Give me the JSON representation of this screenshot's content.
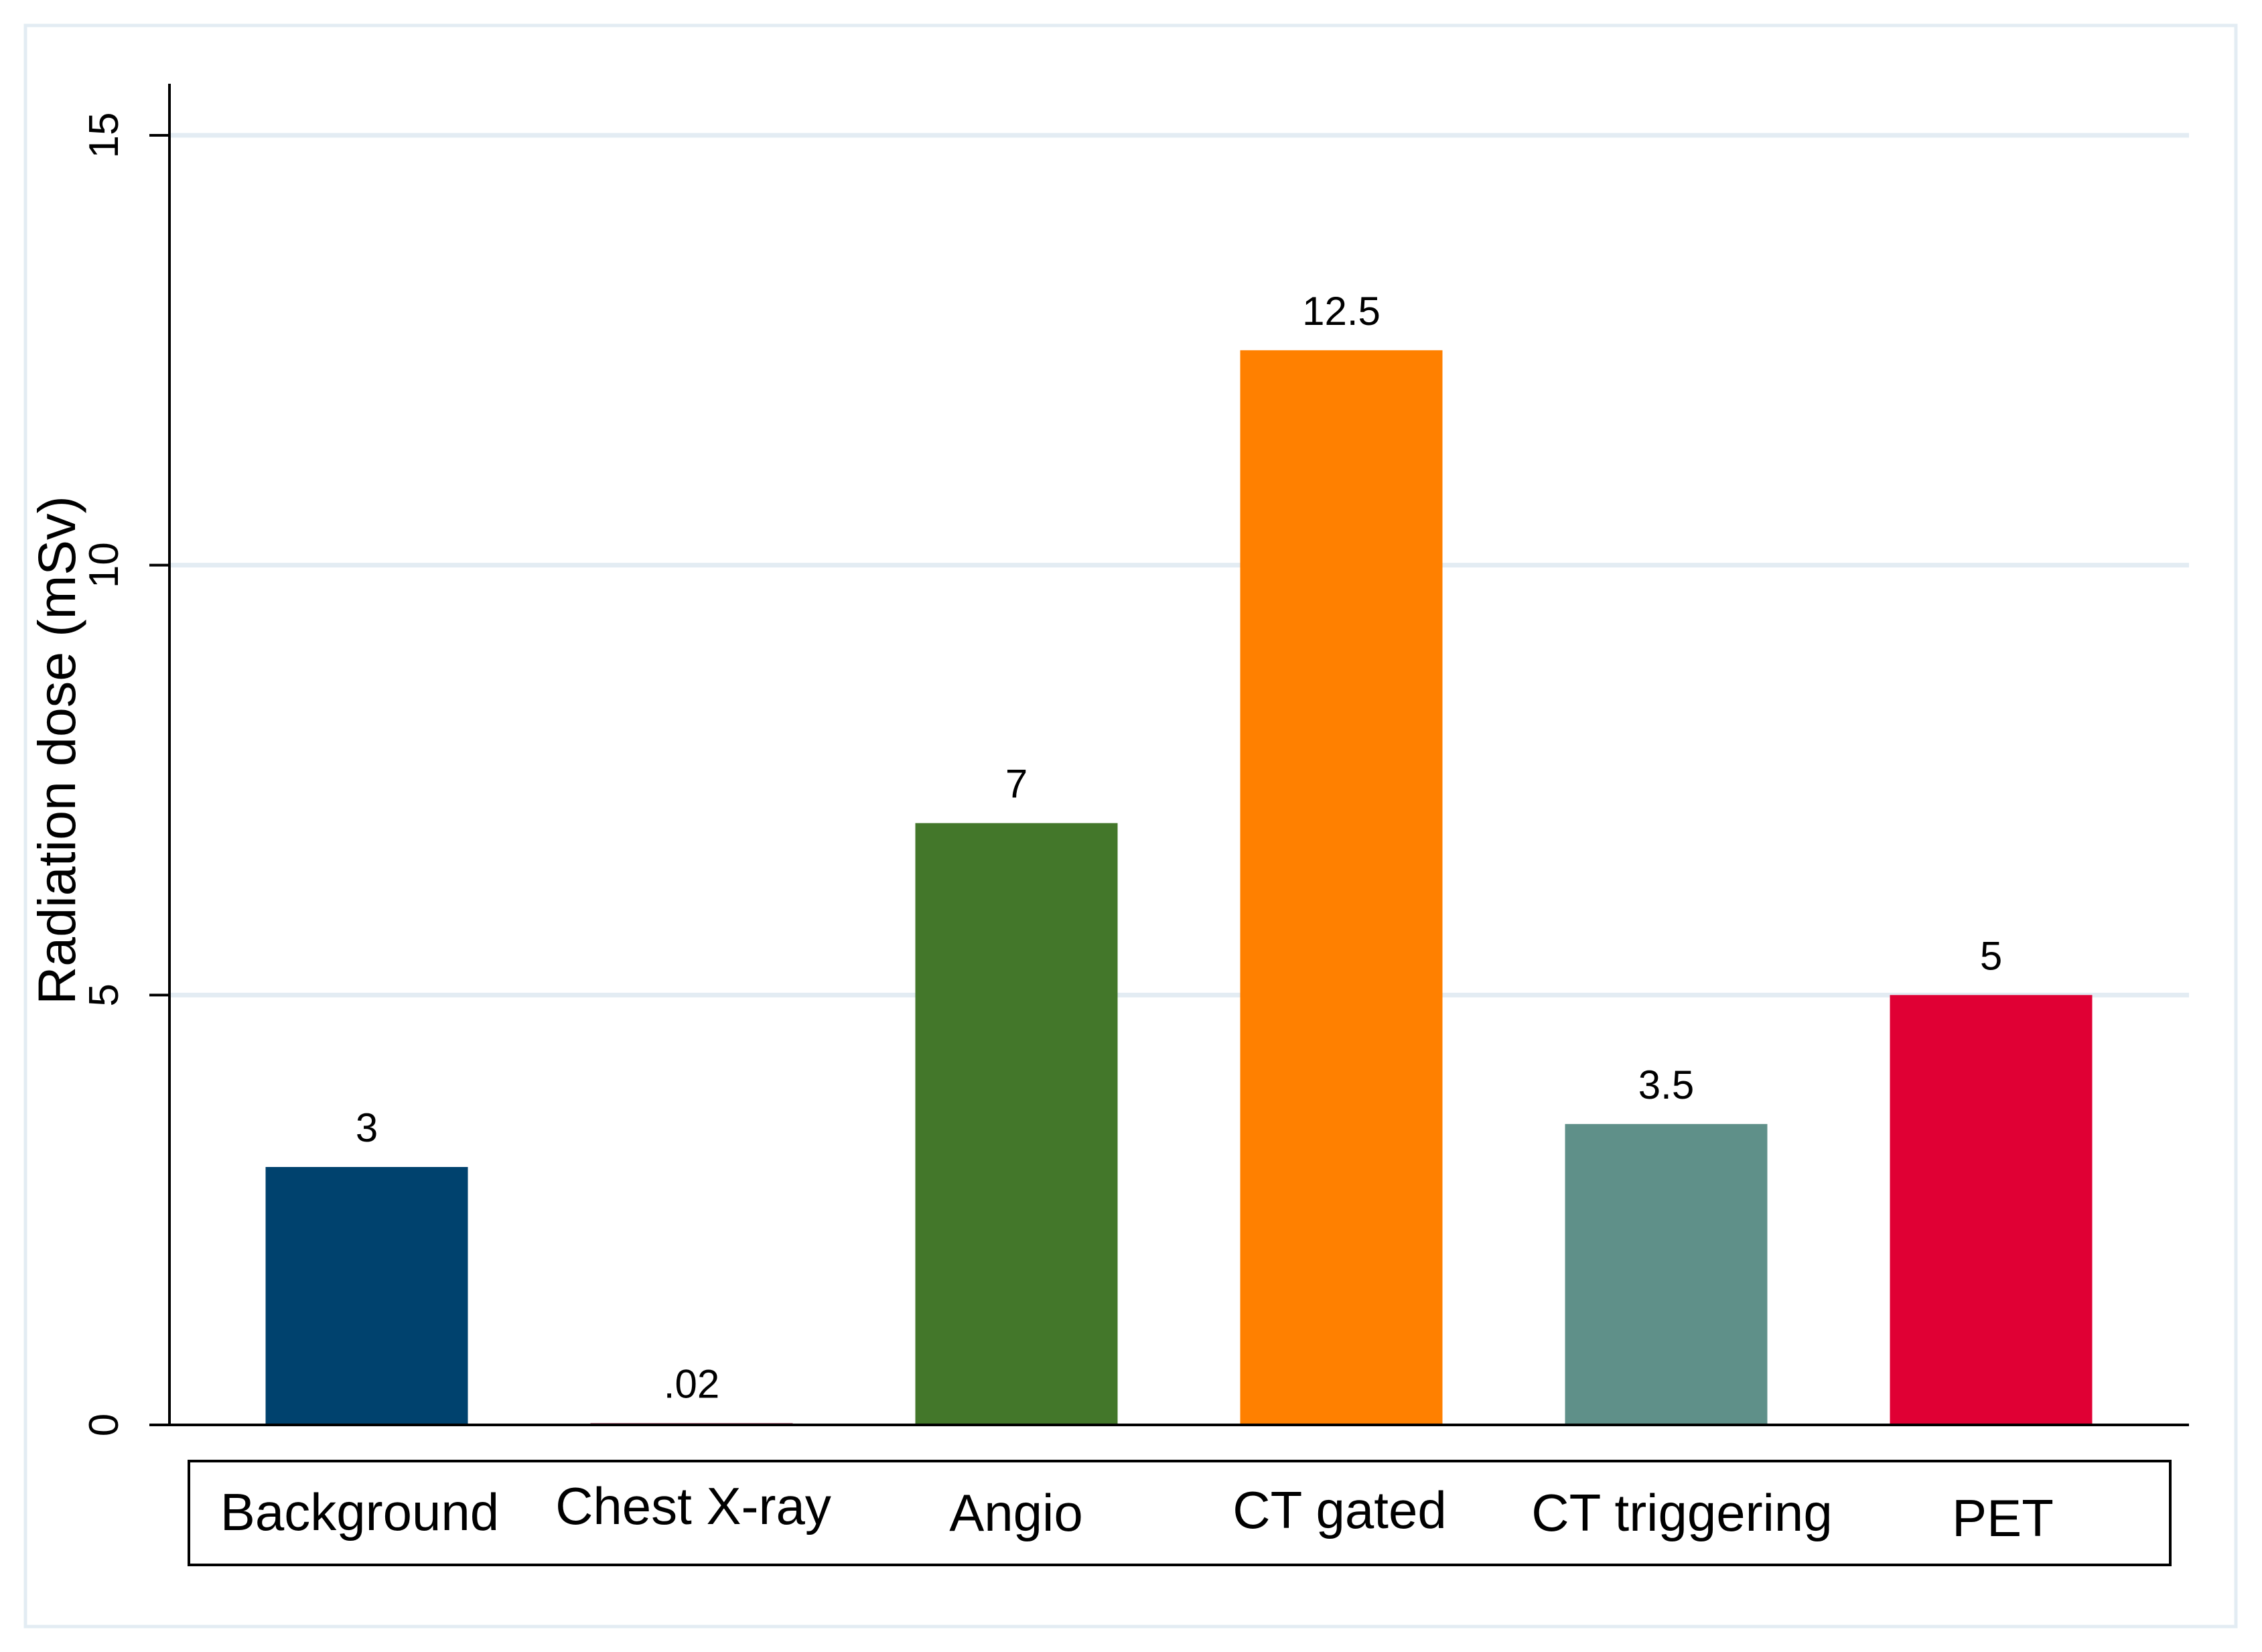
{
  "chart_data": {
    "type": "bar",
    "title": "",
    "xlabel": "",
    "ylabel": "Radiation dose (mSv)",
    "ylim": [
      0,
      15.6
    ],
    "yticks": [
      0,
      5,
      10,
      15
    ],
    "ytick_labels": [
      "0",
      "5",
      "10",
      "15"
    ],
    "grid": true,
    "legend_position": "bottom",
    "series": [
      {
        "name": "Background",
        "value": 3,
        "label": "3",
        "color": "#00426e"
      },
      {
        "name": "Chest X-ray",
        "value": 0.02,
        "label": ".02",
        "color": "#8e1d3e"
      },
      {
        "name": "Angio",
        "value": 7,
        "label": "7",
        "color": "#43772a"
      },
      {
        "name": "CT gated",
        "value": 12.5,
        "label": "12.5",
        "color": "#ff8000"
      },
      {
        "name": "CT triggering",
        "value": 3.5,
        "label": "3.5",
        "color": "#5f9089"
      },
      {
        "name": "PET",
        "value": 5,
        "label": "5",
        "color": "#e00034"
      }
    ]
  }
}
